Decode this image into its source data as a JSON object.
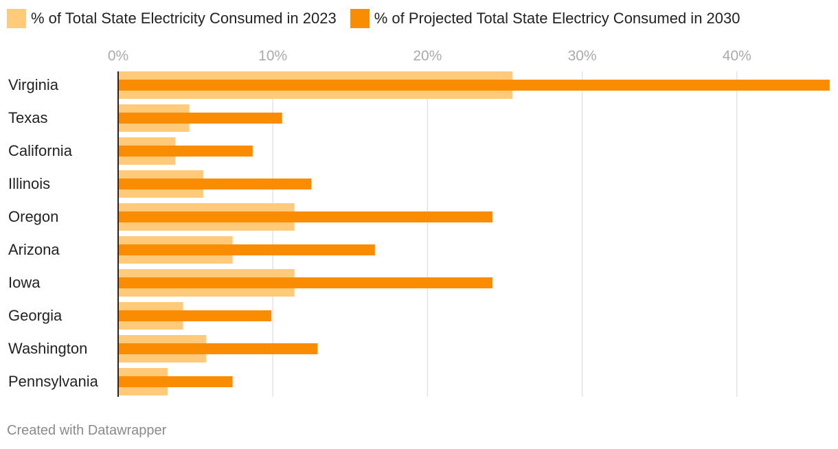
{
  "legend": {
    "series_2023": "% of Total State Electricity Consumed in 2023",
    "series_2030": "% of Projected Total State Electricy Consumed in 2030"
  },
  "colors": {
    "series_2023": "#ffca7a",
    "series_2030": "#f98c00",
    "gridline": "#e3e3e3",
    "axis": "#222222",
    "tick_label": "#aaaaaa"
  },
  "chart_data": {
    "type": "bar",
    "orientation": "horizontal",
    "categories": [
      "Virginia",
      "Texas",
      "California",
      "Illinois",
      "Oregon",
      "Arizona",
      "Iowa",
      "Georgia",
      "Washington",
      "Pennsylvania"
    ],
    "series": [
      {
        "name": "% of Total State Electricity Consumed in 2023",
        "values": [
          25.5,
          4.6,
          3.7,
          5.5,
          11.4,
          7.4,
          11.4,
          4.2,
          5.7,
          3.2
        ]
      },
      {
        "name": "% of Projected Total State Electricy Consumed in 2030",
        "values": [
          46.0,
          10.6,
          8.7,
          12.5,
          24.2,
          16.6,
          24.2,
          9.9,
          12.9,
          7.4
        ]
      }
    ],
    "xticks": [
      0,
      10,
      20,
      30,
      40
    ],
    "xtick_labels": [
      "0%",
      "10%",
      "20%",
      "30%",
      "40%"
    ],
    "xlim": [
      0,
      46
    ],
    "grid": true,
    "legend_position": "top-left"
  },
  "footer": {
    "credit": "Created with Datawrapper"
  }
}
